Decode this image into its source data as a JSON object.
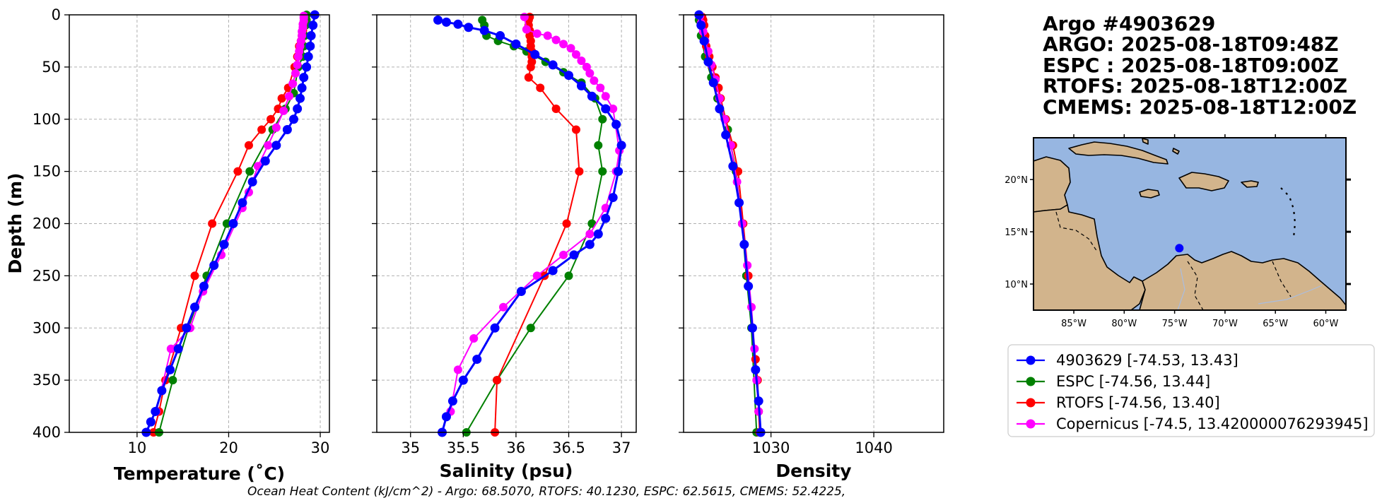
{
  "colors": {
    "argo": "#0000ff",
    "espc": "#008000",
    "rtofs": "#ff0000",
    "cmems": "#ff00ff",
    "ocean": "#97b6e1",
    "land": "#d2b48c"
  },
  "chart_data": [
    {
      "type": "line",
      "id": "temperature",
      "xlabel": "Temperature (˚C)",
      "ylabel": "Depth (m)",
      "xlim": [
        2.6,
        31
      ],
      "ylim": [
        400,
        0
      ],
      "xticks": [
        10,
        20,
        30
      ],
      "yticks": [
        0,
        50,
        100,
        150,
        200,
        250,
        300,
        350,
        400
      ],
      "grid": true,
      "series": [
        {
          "name": "RTOFS",
          "color": "#ff0000",
          "x": [
            28.3,
            28.3,
            28.2,
            28.1,
            28.0,
            27.9,
            27.7,
            27.5,
            27.2,
            26.5,
            25.8,
            25.4,
            24.6,
            23.6,
            22.2,
            21.0,
            18.2,
            16.3,
            14.8,
            13.1,
            12.4,
            11.8
          ],
          "y": [
            2,
            5,
            10,
            15,
            20,
            25,
            30,
            40,
            50,
            70,
            80,
            90,
            100,
            110,
            125,
            150,
            200,
            250,
            300,
            350,
            380,
            400
          ]
        },
        {
          "name": "ESPC",
          "color": "#008000",
          "x": [
            28.5,
            28.5,
            28.4,
            28.3,
            28.2,
            28.1,
            27.6,
            27.1,
            26.2,
            24.8,
            22.3,
            19.8,
            17.6,
            15.6,
            13.9,
            12.4
          ],
          "y": [
            0,
            5,
            10,
            20,
            30,
            40,
            50,
            75,
            90,
            110,
            150,
            200,
            250,
            300,
            350,
            400
          ]
        },
        {
          "name": "Copernicus",
          "color": "#ff00ff",
          "x": [
            28.2,
            28.2,
            28.2,
            28.1,
            28.1,
            28.0,
            28.0,
            27.9,
            27.8,
            27.7,
            27.6,
            27.5,
            27.3,
            27.0,
            26.6,
            26.0,
            25.2,
            24.3,
            23.2,
            22.2,
            21.5,
            19.2,
            17.2,
            15.8,
            13.7,
            12.1
          ],
          "y": [
            1,
            3,
            6,
            9,
            12,
            16,
            20,
            25,
            30,
            35,
            40,
            48,
            56,
            66,
            78,
            92,
            108,
            125,
            145,
            170,
            185,
            230,
            265,
            300,
            320,
            380
          ]
        },
        {
          "name": "4903629",
          "color": "#0000ff",
          "x": [
            29.4,
            29.2,
            29.0,
            28.9,
            28.7,
            28.5,
            28.2,
            28.0,
            27.8,
            27.5,
            27.1,
            26.4,
            25.2,
            24.0,
            22.6,
            21.5,
            20.5,
            19.5,
            18.4,
            17.3,
            16.3,
            15.4,
            14.5,
            13.6,
            12.7,
            12.0,
            11.5,
            11.0
          ],
          "y": [
            0,
            10,
            20,
            30,
            40,
            50,
            60,
            70,
            80,
            90,
            100,
            110,
            125,
            140,
            160,
            180,
            200,
            220,
            240,
            260,
            280,
            300,
            320,
            340,
            360,
            380,
            390,
            400
          ]
        }
      ]
    },
    {
      "type": "line",
      "id": "salinity",
      "xlabel": "Salinity (psu)",
      "ylabel": "",
      "xlim": [
        34.68,
        37.14
      ],
      "ylim": [
        400,
        0
      ],
      "xticks": [
        35.0,
        35.5,
        36.0,
        36.5,
        37.0
      ],
      "yticks": [
        0,
        50,
        100,
        150,
        200,
        250,
        300,
        350,
        400
      ],
      "grid": true,
      "series": [
        {
          "name": "ESPC",
          "color": "#008000",
          "x": [
            35.68,
            35.7,
            35.72,
            35.83,
            35.98,
            36.1,
            36.28,
            36.45,
            36.62,
            36.75,
            36.82,
            36.78,
            36.82,
            36.72,
            36.5,
            36.14,
            35.82,
            35.53
          ],
          "y": [
            5,
            10,
            20,
            25,
            30,
            35,
            45,
            55,
            65,
            80,
            100,
            125,
            150,
            200,
            250,
            300,
            350,
            400
          ]
        },
        {
          "name": "RTOFS",
          "color": "#ff0000",
          "x": [
            36.13,
            36.12,
            36.12,
            36.13,
            36.13,
            36.14,
            36.14,
            36.15,
            36.15,
            36.15,
            36.14,
            36.12,
            36.23,
            36.38,
            36.57,
            36.6,
            36.48,
            36.27,
            35.82,
            35.8
          ],
          "y": [
            2,
            5,
            10,
            15,
            20,
            25,
            30,
            35,
            40,
            45,
            50,
            60,
            70,
            90,
            110,
            150,
            200,
            250,
            350,
            400
          ]
        },
        {
          "name": "Copernicus",
          "color": "#ff00ff",
          "x": [
            36.08,
            36.1,
            36.2,
            36.3,
            36.38,
            36.45,
            36.52,
            36.57,
            36.62,
            36.67,
            36.7,
            36.74,
            36.8,
            36.85,
            36.92,
            36.98,
            36.95,
            36.85,
            36.7,
            36.45,
            36.2,
            35.88,
            35.6,
            35.45,
            35.38
          ],
          "y": [
            2,
            14,
            18,
            20,
            24,
            28,
            32,
            38,
            44,
            50,
            56,
            63,
            70,
            78,
            90,
            130,
            150,
            185,
            210,
            230,
            250,
            280,
            310,
            340,
            380
          ]
        },
        {
          "name": "4903629",
          "color": "#0000ff",
          "x": [
            35.26,
            35.34,
            35.45,
            35.55,
            35.7,
            35.85,
            36.0,
            36.18,
            36.35,
            36.5,
            36.62,
            36.72,
            36.85,
            36.95,
            37.0,
            36.97,
            36.92,
            36.85,
            36.78,
            36.7,
            36.55,
            36.35,
            36.05,
            35.8,
            35.63,
            35.5,
            35.4,
            35.34,
            35.3
          ],
          "y": [
            5,
            7,
            9,
            12,
            15,
            20,
            28,
            38,
            48,
            58,
            68,
            78,
            90,
            105,
            125,
            150,
            175,
            195,
            210,
            220,
            230,
            245,
            265,
            300,
            330,
            350,
            370,
            385,
            400
          ]
        }
      ]
    },
    {
      "type": "line",
      "id": "density",
      "xlabel": "Density",
      "ylabel": "",
      "xlim": [
        1021.5,
        1046.8
      ],
      "ylim": [
        400,
        0
      ],
      "xticks": [
        1030,
        1040
      ],
      "yticks": [
        0,
        50,
        100,
        150,
        200,
        250,
        300,
        350,
        400
      ],
      "grid": true,
      "series": [
        {
          "name": "ESPC",
          "color": "#008000",
          "x": [
            1023.0,
            1023.2,
            1023.6,
            1024.2,
            1024.8,
            1025.8,
            1026.6,
            1027.2,
            1027.6,
            1028.1,
            1028.6
          ],
          "y": [
            5,
            20,
            40,
            60,
            80,
            110,
            150,
            200,
            250,
            300,
            400
          ]
        },
        {
          "name": "RTOFS",
          "color": "#ff0000",
          "x": [
            1023.3,
            1023.4,
            1023.5,
            1023.6,
            1023.7,
            1024.0,
            1024.3,
            1024.6,
            1024.9,
            1025.1,
            1025.6,
            1026.3,
            1026.8,
            1027.3,
            1027.8,
            1028.2,
            1028.5,
            1028.7,
            1028.8,
            1028.9
          ],
          "y": [
            2,
            5,
            10,
            20,
            30,
            40,
            50,
            60,
            70,
            80,
            100,
            125,
            150,
            200,
            250,
            300,
            330,
            350,
            380,
            400
          ]
        },
        {
          "name": "Copernicus",
          "color": "#ff00ff",
          "x": [
            1023.1,
            1023.2,
            1023.4,
            1023.6,
            1023.9,
            1024.2,
            1024.6,
            1025.0,
            1025.5,
            1026.1,
            1026.7,
            1027.2,
            1027.7,
            1028.1,
            1028.4,
            1028.6,
            1028.8
          ],
          "y": [
            1,
            8,
            16,
            25,
            35,
            48,
            62,
            80,
            100,
            125,
            160,
            200,
            240,
            280,
            320,
            350,
            380
          ]
        },
        {
          "name": "4903629",
          "color": "#0000ff",
          "x": [
            1023.0,
            1023.2,
            1023.5,
            1023.9,
            1024.4,
            1025.0,
            1025.6,
            1026.3,
            1026.9,
            1027.4,
            1027.8,
            1028.2,
            1028.5,
            1028.8,
            1029.0
          ],
          "y": [
            0,
            10,
            25,
            45,
            65,
            90,
            115,
            145,
            180,
            220,
            260,
            300,
            340,
            370,
            400
          ]
        }
      ]
    }
  ],
  "info": {
    "lines": [
      "Argo #4903629",
      "ARGO: 2025-08-18T09:48Z",
      "ESPC : 2025-08-18T09:00Z",
      "RTOFS: 2025-08-18T12:00Z",
      "CMEMS: 2025-08-18T12:00Z"
    ]
  },
  "map": {
    "lon_labels": [
      "85°W",
      "80°W",
      "75°W",
      "70°W",
      "65°W",
      "60°W"
    ],
    "lat_labels": [
      "20°N",
      "15°N",
      "10°N"
    ],
    "lon_range": [
      -89,
      -58
    ],
    "lat_range": [
      7.5,
      24
    ],
    "lon_ticks": [
      -85,
      -80,
      -75,
      -70,
      -65,
      -60
    ],
    "lat_ticks": [
      20,
      15,
      10
    ],
    "point": {
      "lon": -74.53,
      "lat": 13.43
    }
  },
  "legend": {
    "items": [
      {
        "label": "4903629 [-74.53, 13.43]",
        "color": "#0000ff"
      },
      {
        "label": "ESPC [-74.56, 13.44]",
        "color": "#008000"
      },
      {
        "label": "RTOFS [-74.56, 13.40]",
        "color": "#ff0000"
      },
      {
        "label": "Copernicus [-74.5, 13.420000076293945]",
        "color": "#ff00ff"
      }
    ]
  },
  "footer": {
    "text": "Ocean Heat Content (kJ/cm^2) - Argo: 68.5070,  RTOFS: 40.1230,  ESPC: 62.5615,  CMEMS: 52.4225,"
  }
}
